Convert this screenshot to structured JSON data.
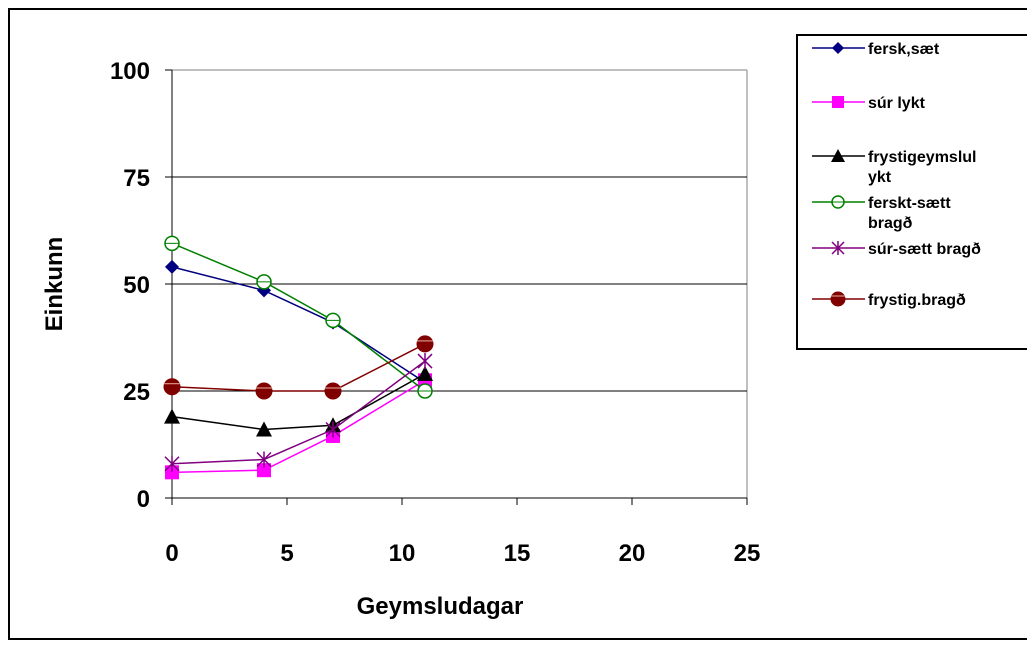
{
  "chart_data": {
    "type": "line",
    "title": "",
    "xlabel": "Geymsludagar",
    "ylabel": "Einkunn",
    "xlim": [
      0,
      25
    ],
    "ylim": [
      0,
      100
    ],
    "x_ticks": [
      "0",
      "5",
      "10",
      "15",
      "20",
      "25"
    ],
    "y_ticks": [
      "0",
      "25",
      "50",
      "75",
      "100"
    ],
    "grid": "horizontal major",
    "legend_position": "right",
    "x": [
      0,
      4,
      7,
      11
    ],
    "series": [
      {
        "name": "fersk,sæt",
        "values": [
          54,
          48.5,
          41,
          27
        ],
        "color": "#000080",
        "marker": "diamond"
      },
      {
        "name": "súr lykt",
        "values": [
          6,
          6.5,
          14.5,
          27.5
        ],
        "color": "#ff00ff",
        "marker": "square"
      },
      {
        "name": "frystigeymslulykt",
        "values": [
          19,
          16,
          17,
          29
        ],
        "color": "#000000",
        "marker": "triangle"
      },
      {
        "name": "ferskt-sætt bragð",
        "values": [
          59.5,
          50.5,
          41.5,
          25
        ],
        "color": "#008000",
        "marker": "open-circle"
      },
      {
        "name": "súr-sætt bragð",
        "values": [
          8,
          9,
          16,
          32
        ],
        "color": "#800080",
        "marker": "star"
      },
      {
        "name": "frystig.bragð",
        "values": [
          26,
          25,
          25,
          36
        ],
        "color": "#800000",
        "marker": "filled-circle"
      }
    ]
  }
}
